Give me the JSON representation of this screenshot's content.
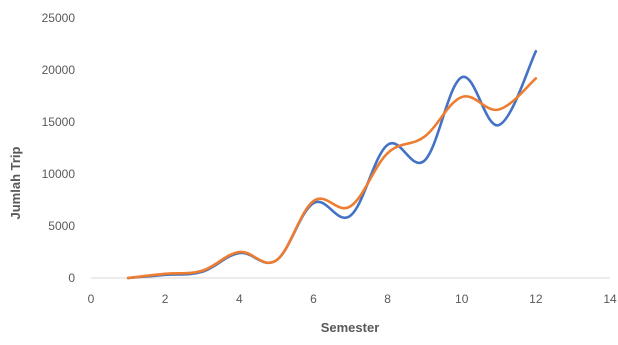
{
  "chart_data": {
    "type": "line",
    "title": "",
    "xlabel": "Semester",
    "ylabel": "Jumlah Trip",
    "xlim": [
      0,
      14
    ],
    "ylim": [
      0,
      25000
    ],
    "xticks": [
      0,
      2,
      4,
      6,
      8,
      10,
      12,
      14
    ],
    "xtick_labels": [
      "0",
      "2",
      "4",
      "6",
      "8",
      "10",
      "12",
      "14"
    ],
    "yticks": [
      0,
      5000,
      10000,
      15000,
      20000,
      25000
    ],
    "ytick_labels": [
      "0",
      "5000",
      "10000",
      "15000",
      "20000",
      "25000"
    ],
    "grid": false,
    "legend": "none",
    "smooth": true,
    "series": [
      {
        "color": "#4472C4",
        "x": [
          1,
          2,
          3,
          4,
          5,
          6,
          7,
          8,
          9,
          10,
          11,
          12
        ],
        "y": [
          0,
          300,
          600,
          2400,
          1700,
          7200,
          6000,
          12800,
          11300,
          19300,
          14700,
          21800
        ]
      },
      {
        "color": "#ED7D31",
        "x": [
          1,
          2,
          3,
          4,
          5,
          6,
          7,
          8,
          9,
          10,
          11,
          12
        ],
        "y": [
          0,
          400,
          700,
          2500,
          1700,
          7400,
          6900,
          12000,
          13600,
          17400,
          16200,
          19200
        ]
      }
    ]
  }
}
